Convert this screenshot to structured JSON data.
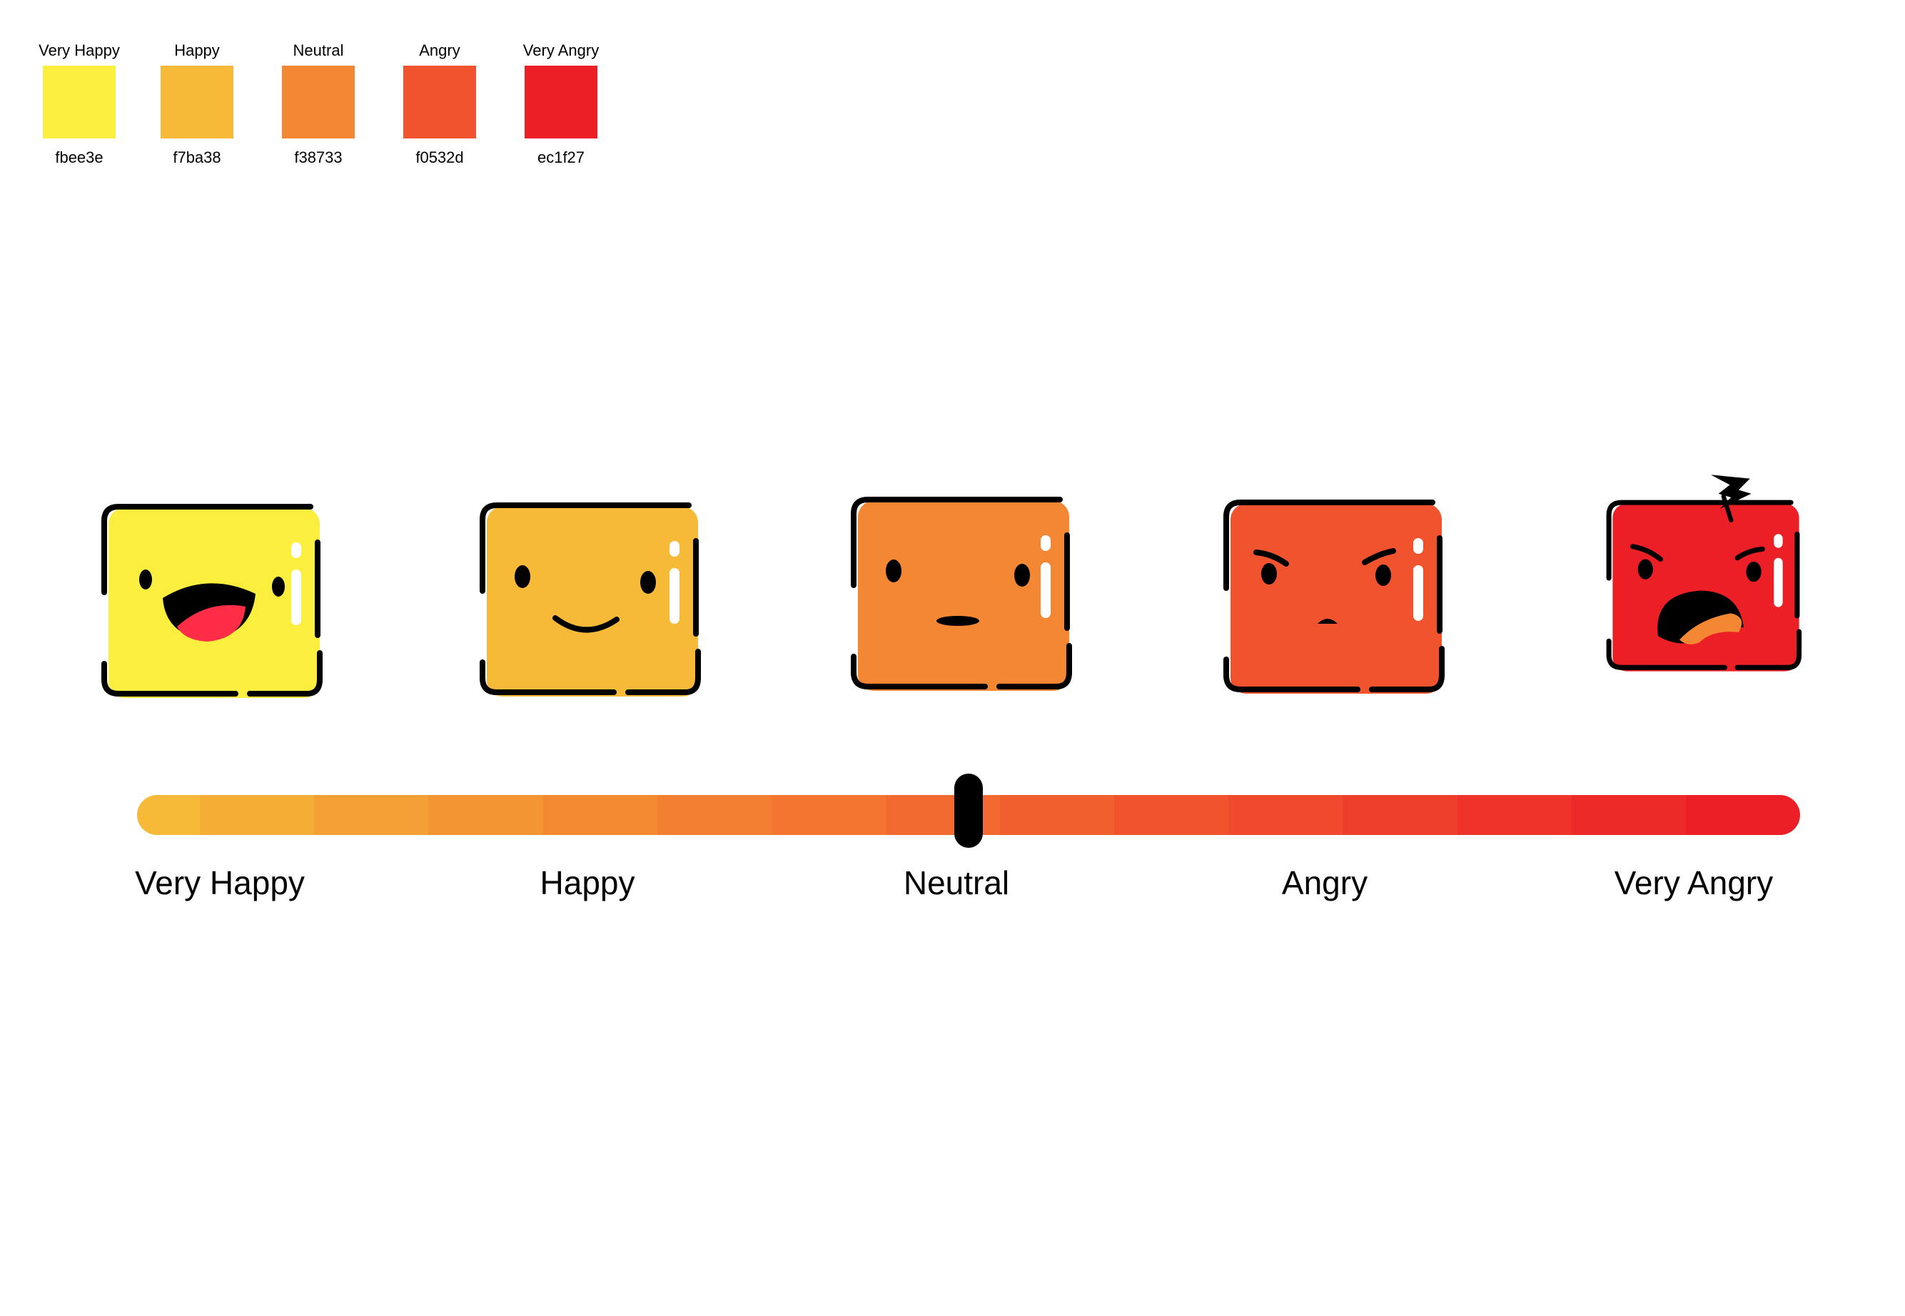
{
  "palette": [
    {
      "name": "Very Happy",
      "hex": "fbee3e",
      "color": "#fbee3e"
    },
    {
      "name": "Happy",
      "hex": "f7ba38",
      "color": "#f7ba38"
    },
    {
      "name": "Neutral",
      "hex": "f38733",
      "color": "#f38733"
    },
    {
      "name": "Angry",
      "hex": "f0532d",
      "color": "#f0532d"
    },
    {
      "name": "Very Angry",
      "hex": "ec1f27",
      "color": "#ec1f27"
    }
  ],
  "faces": [
    {
      "mood": "very-happy",
      "color": "#fbee3e"
    },
    {
      "mood": "happy",
      "color": "#f7ba38"
    },
    {
      "mood": "neutral",
      "color": "#f38733"
    },
    {
      "mood": "angry",
      "color": "#f0532d"
    },
    {
      "mood": "very-angry",
      "color": "#ec1f27"
    }
  ],
  "scale": {
    "labels": [
      "Very Happy",
      "Happy",
      "Neutral",
      "Angry",
      "Very Angry"
    ],
    "handle_value": 0.5,
    "gradient": [
      "#f7ba38",
      "#f5ad36",
      "#f4a034",
      "#f49533",
      "#f38a32",
      "#f38031",
      "#f37530",
      "#f26a2f",
      "#f15f2e",
      "#f0532d",
      "#ef4a2d",
      "#ee3f2c",
      "#ed332a",
      "#ec2a28",
      "#ec1f27"
    ]
  }
}
